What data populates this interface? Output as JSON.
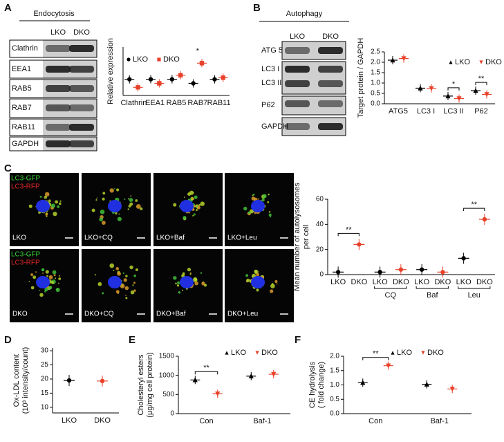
{
  "panels": [
    "A",
    "B",
    "C",
    "D",
    "E",
    "F"
  ],
  "blots": [
    {
      "title": "Endocytosis",
      "lanes": [
        "LKO",
        "DKO"
      ],
      "rows": [
        "Clathrin",
        "EEA1",
        "RAB5",
        "RAB7",
        "RAB11",
        "GAPDH"
      ]
    },
    {
      "title": "Autophagy",
      "lanes": [
        "LKO",
        "DKO"
      ],
      "rows": [
        "ATG 5",
        "LC3 I",
        "LC3 II",
        "P62",
        "GAPDH"
      ]
    }
  ],
  "images": {
    "stain_labels": [
      "LC3-GFP",
      "LC3-RFP"
    ],
    "labels": [
      "LKO",
      "LKO+CQ",
      "LKO+Baf",
      "LKO+Leu",
      "DKO",
      "DKO+CQ",
      "DKO+Baf",
      "DKO+Leu"
    ]
  },
  "chart_data": [
    {
      "type": "dot",
      "ylabel": [
        "Relative expression"
      ],
      "categories": [
        "Clathrin",
        "EEA1",
        "RAB5",
        "RAB7",
        "RAB11"
      ],
      "series": [
        {
          "name": "LKO",
          "color": "#000000",
          "marker": "circle",
          "values": [
            1.0,
            1.0,
            1.0,
            0.95,
            1.0
          ]
        },
        {
          "name": "DKO",
          "color": "#e8412a",
          "marker": "square",
          "values": [
            0.9,
            0.95,
            1.05,
            1.2,
            1.02
          ]
        }
      ],
      "ylim": [
        0.8,
        1.4
      ],
      "legend": "upper left",
      "annotations": [
        {
          "text": "*",
          "index": 3,
          "bracket": false
        }
      ]
    },
    {
      "type": "dot",
      "ylabel": [
        "Target protein / GAPDH"
      ],
      "categories": [
        "ATG5",
        "LC3 I",
        "LC3 II",
        "P62"
      ],
      "series": [
        {
          "name": "LKO",
          "color": "#000000",
          "marker": "triangle",
          "values": [
            2.1,
            0.75,
            0.37,
            0.63
          ]
        },
        {
          "name": "DKO",
          "color": "#e8412a",
          "marker": "triangle-down",
          "values": [
            2.18,
            0.74,
            0.25,
            0.45
          ]
        }
      ],
      "ylim": [
        0,
        2.5
      ],
      "yticks": [
        {
          "value": 0,
          "label": "0.0"
        },
        0.5,
        {
          "value": 1,
          "label": "1.0"
        },
        1.5,
        {
          "value": 2,
          "label": "2.0"
        },
        2.5
      ],
      "legend": "upper right",
      "annotations": [
        {
          "text": "*",
          "index": 2,
          "bracket": true
        },
        {
          "text": "**",
          "index": 3,
          "bracket": true
        }
      ]
    },
    {
      "type": "dot",
      "ylabel": [
        "Mean number of autolysosomes",
        "per cell"
      ],
      "categories": [
        "LKO",
        "DKO",
        "LKO",
        "DKO",
        "LKO",
        "DKO",
        "LKO",
        "DKO"
      ],
      "groups": [
        null,
        "CQ",
        "Baf",
        "Leu"
      ],
      "values": [
        2,
        24,
        2,
        4,
        4,
        2,
        13,
        44
      ],
      "colors": [
        "#000000",
        "#e8412a",
        "#000000",
        "#e8412a",
        "#000000",
        "#e8412a",
        "#000000",
        "#e8412a"
      ],
      "ylim": [
        0,
        60
      ],
      "yticks": [
        0,
        20,
        40,
        60
      ],
      "annotations": [
        {
          "text": "**",
          "index": 0,
          "bracket": true
        },
        {
          "text": "**",
          "index": 6,
          "bracket": true
        }
      ]
    },
    {
      "type": "dot",
      "ylabel": [
        "Ox-LDL content",
        "(10³ intensity/count)"
      ],
      "categories": [
        "LKO",
        "DKO"
      ],
      "values": [
        19.5,
        19.3
      ],
      "colors": [
        "#000000",
        "#e8412a"
      ],
      "ylim": [
        8,
        31
      ],
      "yticks": [
        10,
        15,
        20,
        25,
        30
      ]
    },
    {
      "type": "dot",
      "ylabel": [
        "Cholesteryl esters",
        "(μg/mg cell protein)"
      ],
      "categories": [
        "Con",
        "Baf-1"
      ],
      "series": [
        {
          "name": "LKO",
          "color": "#000000",
          "marker": "triangle",
          "values": [
            880,
            980
          ]
        },
        {
          "name": "DKO",
          "color": "#e8412a",
          "marker": "triangle-down",
          "values": [
            520,
            1030
          ]
        }
      ],
      "ylim": [
        0,
        1500
      ],
      "yticks": [
        0,
        500,
        1000,
        1500
      ],
      "legend": "upper right",
      "annotations": [
        {
          "text": "**",
          "index": 0,
          "bracket": true
        }
      ]
    },
    {
      "type": "dot",
      "ylabel": [
        "CE hydrolysis",
        "( fold change)"
      ],
      "categories": [
        "Con",
        "Baf-1"
      ],
      "series": [
        {
          "name": "LKO",
          "color": "#000000",
          "marker": "triangle",
          "values": [
            1.08,
            1.02
          ]
        },
        {
          "name": "DKO",
          "color": "#e8412a",
          "marker": "triangle-down",
          "values": [
            1.67,
            0.86
          ]
        }
      ],
      "ylim": [
        0,
        2
      ],
      "yticks": [
        {
          "value": 0,
          "label": "0.0"
        },
        0.5,
        {
          "value": 1,
          "label": "1.0"
        },
        1.5,
        {
          "value": 2,
          "label": "2.0"
        }
      ],
      "legend": "upper right",
      "annotations": [
        {
          "text": "**",
          "index": 0,
          "bracket": true
        }
      ]
    }
  ]
}
